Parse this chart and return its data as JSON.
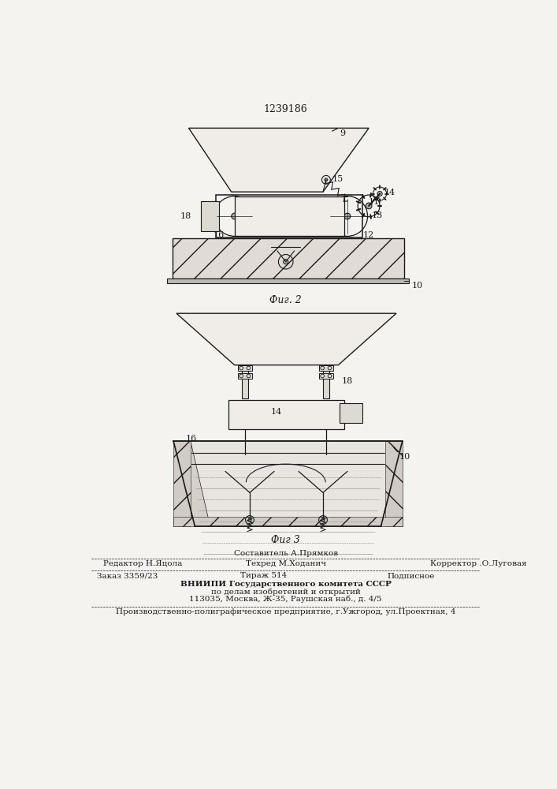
{
  "patent_number": "1239186",
  "bg_color": "#f5f3f0",
  "line_color": "#1a1a1a",
  "fig2_caption": "Фиг. 2",
  "fig3_caption": "Фиг 3",
  "footer": {
    "row1_left": "Редактор Н.Яцола",
    "row1_center_top": "Составитель А.Прямков",
    "row1_center_bot": "Техред М.Ходанич",
    "row1_right": "Корректор .О.Луговая",
    "row2_left": "Заказ 3359/23",
    "row2_center": "Тираж 514",
    "row2_right": "Подписное",
    "row3_1": "ВНИИПИ Государственного комитета СССР",
    "row3_2": "по делам изобретений и открытий",
    "row3_3": "113035, Москва, Ж-35, Раушская наб., д. 4/5",
    "row4": "Производственно-полиграфическое предприятие, г.Ужгород, ул.Проектная, 4"
  }
}
